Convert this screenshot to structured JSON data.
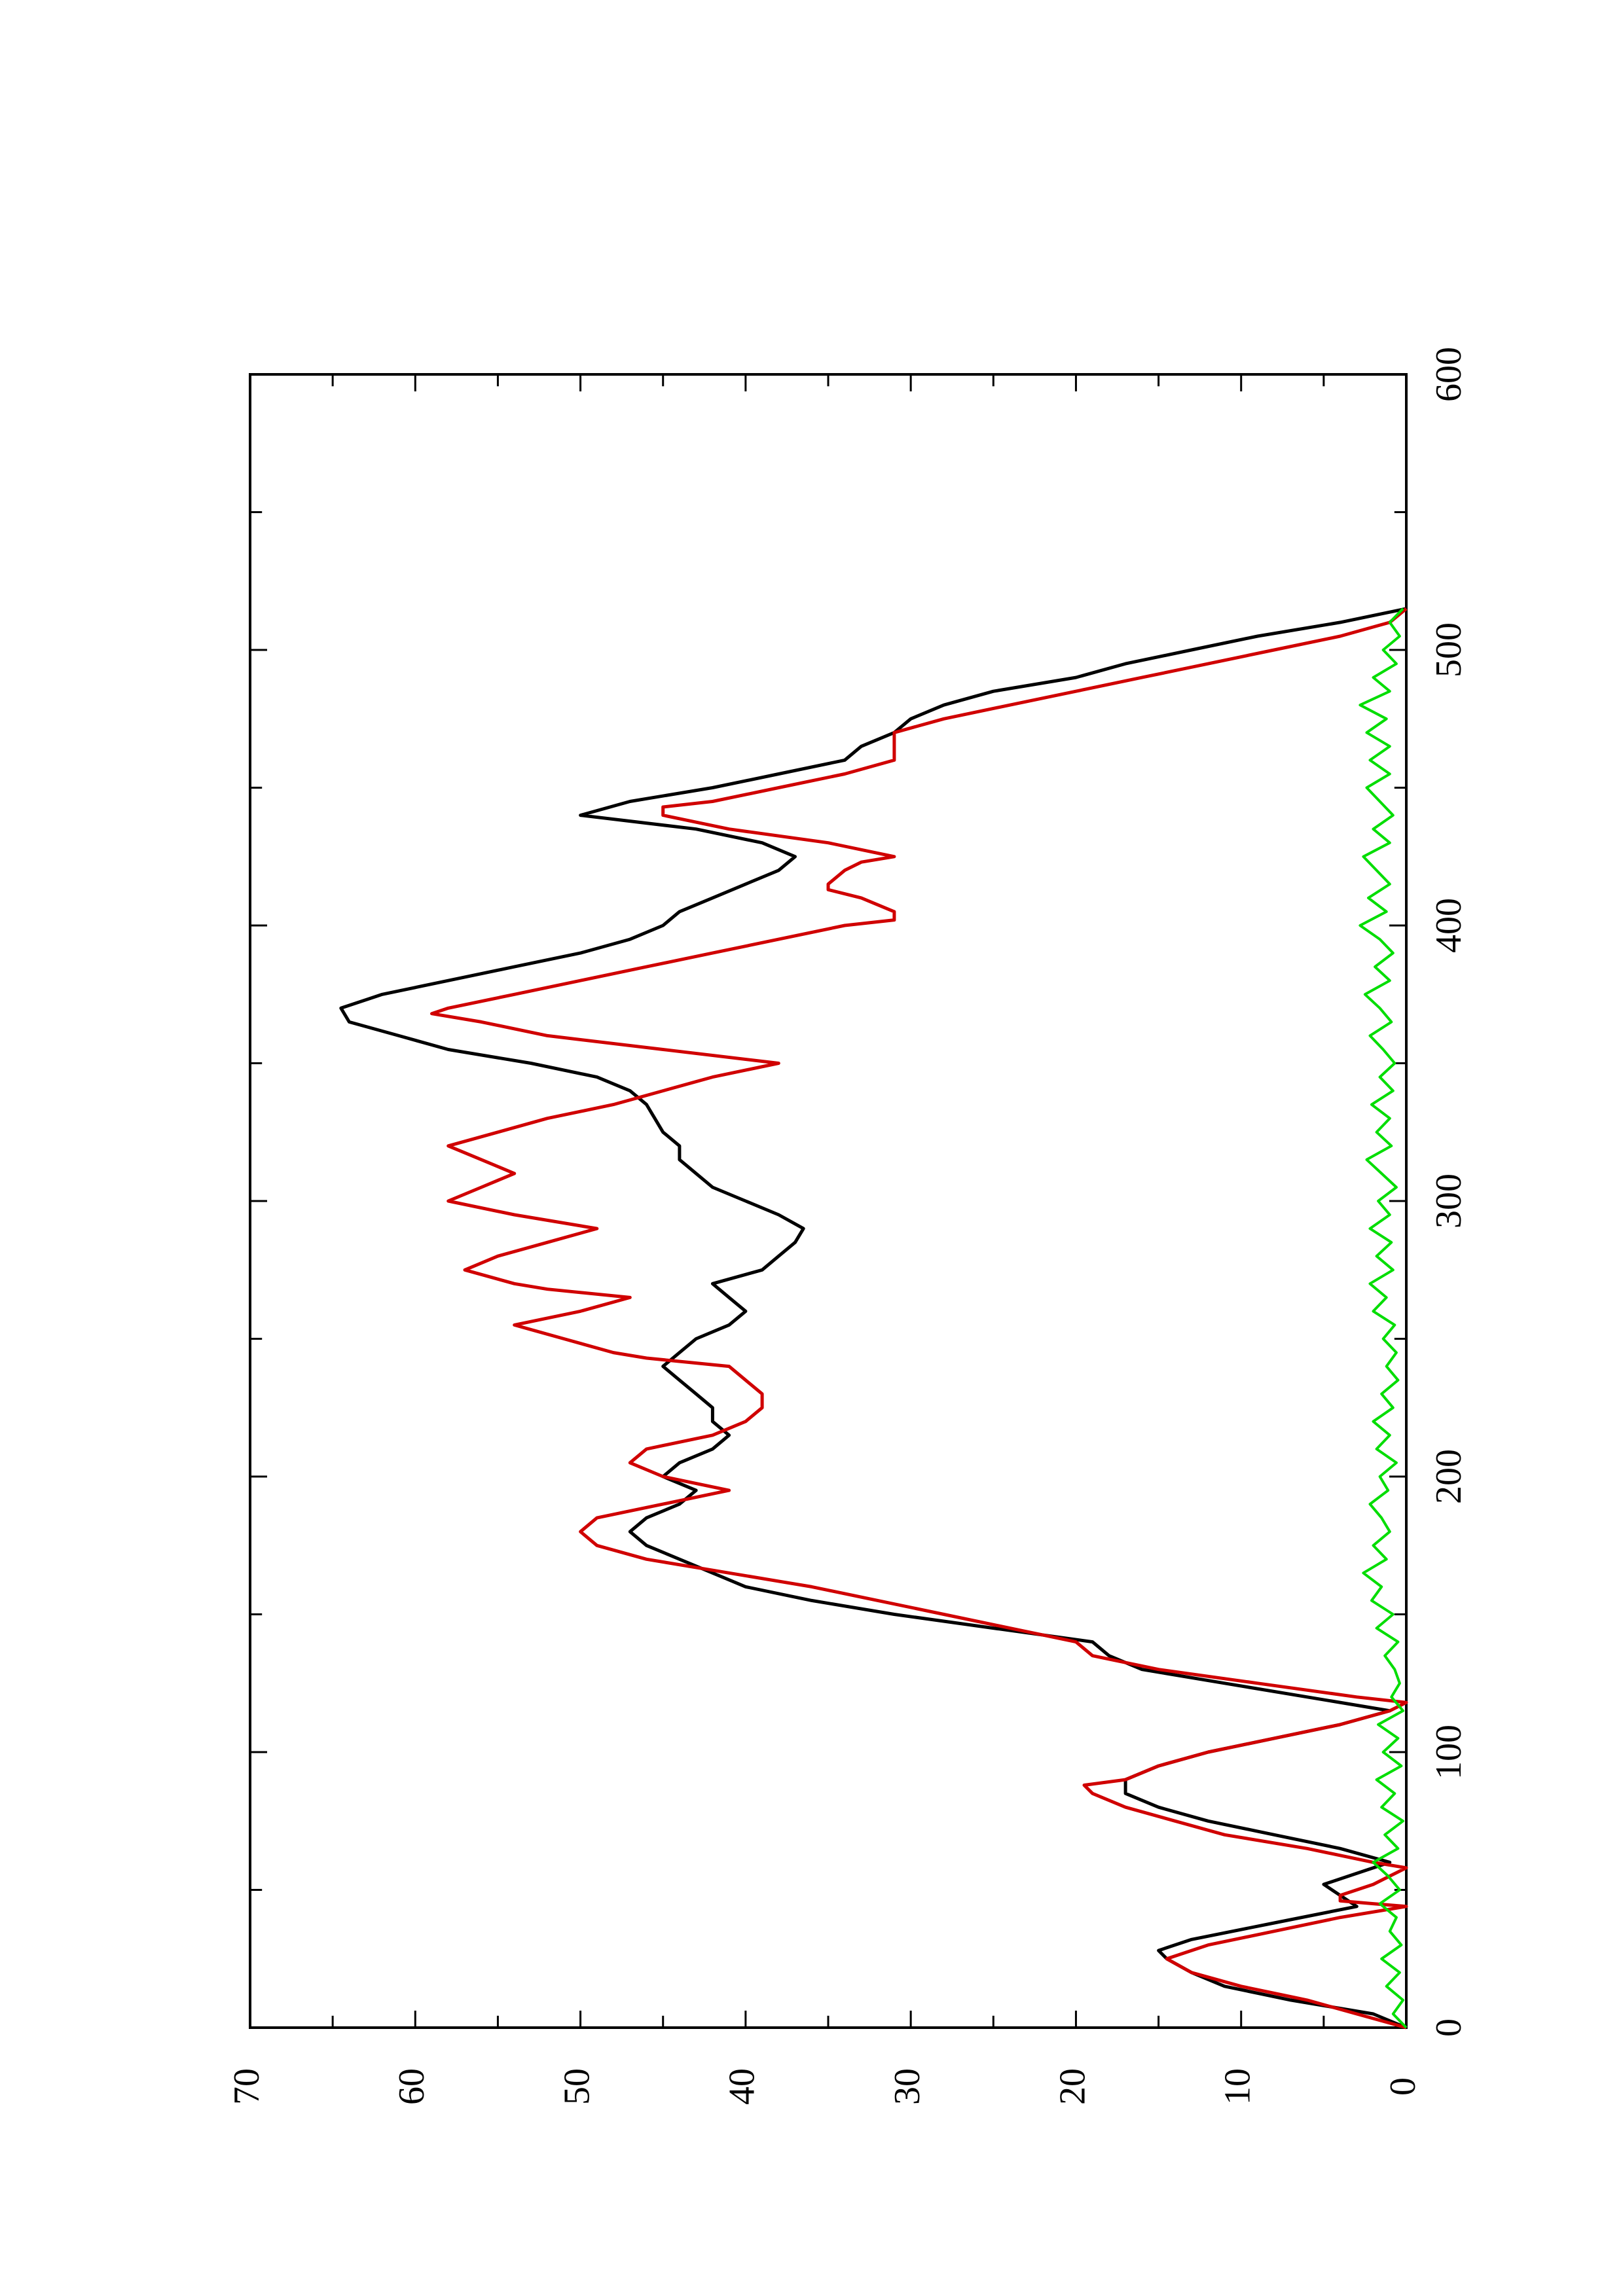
{
  "chart_data": {
    "type": "line",
    "title": "",
    "xlabel": "",
    "ylabel": "",
    "xlim": [
      0,
      600
    ],
    "ylim": [
      0,
      70
    ],
    "x_ticks": [
      0,
      100,
      200,
      300,
      400,
      500,
      600
    ],
    "x_tick_labels": [
      "0",
      "100",
      "200",
      "300",
      "400",
      "500",
      "600"
    ],
    "y_ticks": [
      0,
      10,
      20,
      30,
      40,
      50,
      60,
      70
    ],
    "y_tick_labels": [
      "0",
      "10",
      "20",
      "30",
      "40",
      "50",
      "60",
      "70"
    ],
    "grid": false,
    "legend": "none",
    "series": [
      {
        "color": "#000000",
        "x": [
          0,
          5,
          10,
          15,
          20,
          25,
          28,
          32,
          38,
          44,
          48,
          52,
          56,
          60,
          65,
          70,
          75,
          80,
          85,
          90,
          95,
          100,
          105,
          110,
          115,
          120,
          125,
          130,
          135,
          140,
          145,
          150,
          155,
          160,
          165,
          170,
          175,
          180,
          185,
          190,
          195,
          200,
          205,
          210,
          215,
          220,
          225,
          230,
          235,
          240,
          245,
          250,
          255,
          260,
          265,
          270,
          275,
          280,
          285,
          290,
          295,
          300,
          305,
          310,
          315,
          320,
          325,
          330,
          335,
          340,
          345,
          350,
          355,
          360,
          365,
          370,
          375,
          380,
          385,
          390,
          395,
          400,
          405,
          410,
          415,
          420,
          425,
          430,
          435,
          440,
          445,
          450,
          455,
          460,
          465,
          470,
          475,
          480,
          485,
          490,
          495,
          500,
          505,
          510,
          515
        ],
        "y": [
          0,
          2,
          7,
          11,
          13,
          14.5,
          15,
          13,
          8,
          3,
          4,
          5,
          3,
          1,
          4,
          8,
          12,
          15,
          17,
          17,
          15,
          12,
          8,
          4,
          1,
          6,
          11,
          16,
          18,
          19,
          25,
          31,
          36,
          40,
          42,
          44,
          46,
          47,
          46,
          44,
          43,
          45,
          44,
          42,
          41,
          42,
          42,
          43,
          44,
          45,
          44,
          43,
          41,
          40,
          41,
          42,
          39,
          38,
          37,
          36.5,
          38,
          40,
          42,
          43,
          44,
          44,
          45,
          45.5,
          46,
          47,
          49,
          53,
          58,
          61,
          64,
          64.5,
          62,
          58,
          54,
          50,
          47,
          45,
          44,
          42,
          40,
          38,
          37,
          39,
          43,
          50,
          47,
          42,
          38,
          34,
          33,
          31,
          30,
          28,
          25,
          20,
          17,
          13,
          9,
          4,
          0
        ]
      },
      {
        "color": "#d00000",
        "x": [
          0,
          5,
          10,
          15,
          20,
          25,
          30,
          35,
          40,
          44,
          45,
          46,
          48,
          50,
          52,
          55,
          58,
          60,
          65,
          70,
          75,
          80,
          85,
          88,
          90,
          95,
          100,
          105,
          110,
          115,
          118,
          120,
          125,
          130,
          135,
          140,
          145,
          150,
          155,
          160,
          165,
          170,
          175,
          180,
          185,
          190,
          195,
          200,
          205,
          210,
          215,
          220,
          225,
          230,
          235,
          240,
          243,
          245,
          250,
          255,
          260,
          265,
          268,
          270,
          275,
          280,
          285,
          290,
          295,
          300,
          305,
          310,
          315,
          320,
          325,
          330,
          335,
          340,
          345,
          350,
          355,
          360,
          365,
          368,
          370,
          375,
          380,
          385,
          390,
          395,
          400,
          402,
          405,
          410,
          413,
          415,
          420,
          423,
          425,
          430,
          435,
          440,
          443,
          445,
          450,
          455,
          460,
          465,
          470,
          475,
          480,
          485,
          490,
          495,
          500,
          505,
          510,
          515
        ],
        "y": [
          0,
          3,
          6,
          10,
          13,
          14.5,
          12,
          8,
          4,
          0,
          2,
          4,
          4,
          3,
          2,
          1,
          0,
          2,
          6,
          11,
          14,
          17,
          19,
          19.5,
          17,
          15,
          12,
          8,
          4,
          1,
          0,
          3,
          9,
          15,
          19,
          20,
          24,
          28,
          32,
          36,
          41,
          46,
          49,
          50,
          49,
          45,
          41,
          45,
          47,
          46,
          42,
          40,
          39,
          39,
          40,
          41,
          46,
          48,
          51,
          54,
          50,
          47,
          52,
          54,
          57,
          55,
          52,
          49,
          54,
          58,
          56,
          54,
          56,
          58,
          55,
          52,
          48,
          45,
          42,
          38,
          45,
          52,
          56,
          59,
          58,
          54,
          50,
          46,
          42,
          38,
          34,
          31,
          31,
          33,
          35,
          35,
          34,
          33,
          31,
          35,
          41,
          45,
          45,
          42,
          38,
          34,
          31,
          31,
          31,
          28,
          24,
          20,
          16,
          12,
          8,
          4,
          1,
          0
        ]
      },
      {
        "color": "#00dd00",
        "x": [
          0,
          5,
          10,
          15,
          20,
          25,
          30,
          35,
          40,
          45,
          50,
          55,
          60,
          65,
          70,
          75,
          80,
          85,
          90,
          95,
          100,
          105,
          110,
          115,
          120,
          125,
          130,
          135,
          140,
          145,
          150,
          155,
          160,
          165,
          170,
          175,
          180,
          185,
          190,
          195,
          200,
          205,
          210,
          215,
          220,
          225,
          230,
          235,
          240,
          245,
          250,
          255,
          260,
          265,
          270,
          275,
          280,
          285,
          290,
          295,
          300,
          305,
          310,
          315,
          320,
          325,
          330,
          335,
          340,
          345,
          350,
          355,
          360,
          365,
          370,
          375,
          380,
          385,
          390,
          395,
          400,
          405,
          410,
          415,
          420,
          425,
          430,
          435,
          440,
          445,
          450,
          455,
          460,
          465,
          470,
          475,
          480,
          485,
          490,
          495,
          500,
          505,
          510,
          515
        ],
        "y": [
          0,
          0.8,
          0.2,
          1.2,
          0.4,
          1.5,
          0.3,
          1.0,
          0.6,
          1.6,
          0.4,
          1.1,
          2.0,
          0.5,
          1.3,
          0.2,
          1.5,
          0.7,
          1.8,
          0.3,
          1.4,
          0.5,
          1.7,
          0.2,
          0.9,
          0.4,
          0.7,
          1.3,
          0.5,
          1.8,
          0.8,
          2.1,
          1.5,
          2.6,
          1.2,
          2.0,
          1.0,
          1.5,
          2.2,
          1.1,
          1.6,
          0.6,
          1.8,
          1.0,
          2.0,
          0.8,
          1.5,
          0.5,
          1.2,
          0.6,
          1.4,
          0.7,
          2.0,
          1.2,
          2.2,
          0.8,
          1.8,
          0.9,
          2.2,
          1.0,
          1.7,
          0.6,
          1.5,
          2.4,
          0.9,
          1.8,
          1.0,
          2.1,
          0.8,
          1.6,
          0.7,
          1.4,
          2.2,
          0.9,
          1.6,
          2.5,
          1.0,
          1.9,
          0.8,
          1.6,
          2.8,
          1.2,
          2.3,
          1.0,
          1.8,
          2.6,
          1.0,
          2.0,
          0.8,
          1.6,
          2.4,
          1.0,
          2.2,
          1.0,
          2.4,
          1.2,
          2.8,
          1.0,
          2.0,
          0.6,
          1.4,
          0.4,
          1.0,
          0.2
        ]
      }
    ]
  }
}
